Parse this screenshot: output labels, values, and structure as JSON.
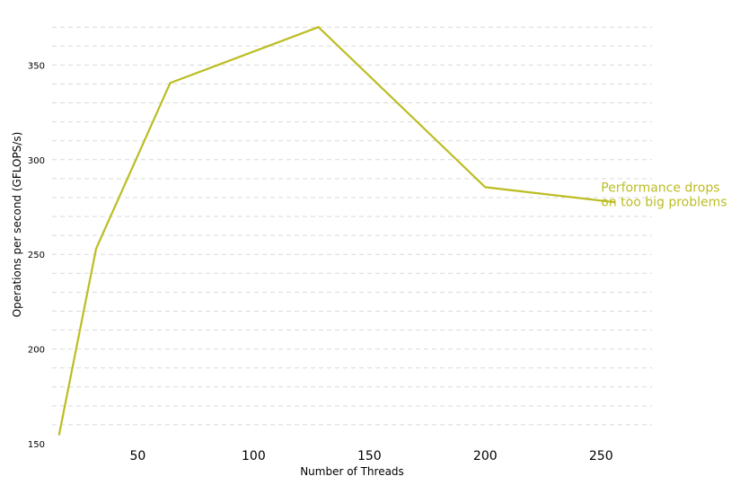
{
  "chart_data": {
    "type": "line",
    "xlabel": "Number of Threads",
    "ylabel": "Operations per second (GFLOPS/s)",
    "xlim": [
      13,
      272
    ],
    "ylim": [
      150,
      372
    ],
    "x_ticks": [
      50,
      100,
      150,
      200,
      250
    ],
    "y_ticks": [
      150,
      200,
      250,
      300,
      350
    ],
    "y_minor_step": 10,
    "grid": "horizontal-dashed",
    "line_color": "#bcbd22",
    "series": [
      {
        "x": [
          16,
          32,
          64,
          128,
          200,
          256
        ],
        "values": [
          154.5,
          253,
          340.5,
          370,
          285.5,
          277.5
        ]
      }
    ],
    "annotation": {
      "lines": [
        "Performance drops",
        "on too big problems"
      ],
      "anchor_x": 250,
      "anchor_y": 283
    }
  }
}
